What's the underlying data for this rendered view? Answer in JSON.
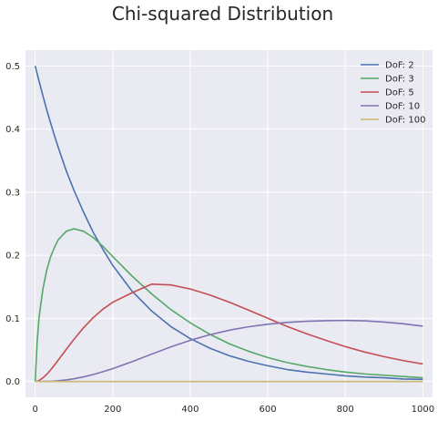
{
  "chart_data": {
    "type": "line",
    "title": "Chi-squared Distribution",
    "xlabel": "",
    "ylabel": "",
    "xlim": [
      -25,
      1025
    ],
    "ylim": [
      -0.025,
      0.525
    ],
    "xticks": [
      0,
      200,
      400,
      600,
      800,
      1000
    ],
    "xtick_labels": [
      "0",
      "200",
      "400",
      "600",
      "800",
      "1000"
    ],
    "yticks": [
      0.0,
      0.1,
      0.2,
      0.3,
      0.4,
      0.5
    ],
    "ytick_labels": [
      "0.0",
      "0.1",
      "0.2",
      "0.3",
      "0.4",
      "0.5"
    ],
    "grid": true,
    "legend_position": "top-right",
    "background": "#eaeaf2",
    "x": [
      0,
      5,
      10,
      20,
      30,
      40,
      50,
      60,
      80,
      100,
      125,
      150,
      175,
      200,
      250,
      300,
      350,
      400,
      450,
      500,
      550,
      600,
      650,
      700,
      750,
      800,
      850,
      900,
      950,
      1000
    ],
    "series": [
      {
        "name": "DoF: 2",
        "color": "#4c72b0",
        "values": [
          0.5,
          0.4878,
          0.476,
          0.4524,
          0.43,
          0.409,
          0.389,
          0.37,
          0.334,
          0.303,
          0.268,
          0.236,
          0.209,
          0.184,
          0.143,
          0.112,
          0.087,
          0.068,
          0.053,
          0.041,
          0.032,
          0.025,
          0.019,
          0.015,
          0.012,
          0.009,
          0.007,
          0.006,
          0.004,
          0.0034
        ]
      },
      {
        "name": "DoF: 3",
        "color": "#55a868",
        "values": [
          0.0,
          0.062,
          0.102,
          0.147,
          0.177,
          0.198,
          0.213,
          0.225,
          0.238,
          0.242,
          0.238,
          0.228,
          0.214,
          0.198,
          0.167,
          0.139,
          0.114,
          0.093,
          0.075,
          0.06,
          0.048,
          0.038,
          0.03,
          0.024,
          0.019,
          0.015,
          0.012,
          0.01,
          0.008,
          0.006
        ]
      },
      {
        "name": "DoF: 5",
        "color": "#c44e52",
        "values": [
          0.0,
          0.0003,
          0.0017,
          0.0057,
          0.0115,
          0.0185,
          0.0262,
          0.0343,
          0.0508,
          0.0668,
          0.0854,
          0.1014,
          0.1148,
          0.1256,
          0.1407,
          0.1542,
          0.153,
          0.1466,
          0.1372,
          0.1259,
          0.1132,
          0.1003,
          0.0872,
          0.0757,
          0.0652,
          0.0553,
          0.0467,
          0.0394,
          0.0331,
          0.0278
        ]
      },
      {
        "name": "DoF: 10",
        "color": "#8172b2",
        "values": [
          0.0,
          0.0,
          0.0,
          0.0001,
          0.0002,
          0.0004,
          0.0007,
          0.0012,
          0.0025,
          0.0043,
          0.0074,
          0.0111,
          0.0156,
          0.0204,
          0.0314,
          0.0433,
          0.0549,
          0.0653,
          0.0741,
          0.0812,
          0.0867,
          0.0908,
          0.0936,
          0.0954,
          0.0964,
          0.0968,
          0.0962,
          0.0942,
          0.0915,
          0.0877
        ]
      },
      {
        "name": "DoF: 100",
        "color": "#ccb974",
        "values": [
          0,
          0,
          0,
          0,
          0,
          0,
          0,
          0,
          0,
          0,
          0,
          0,
          0,
          0,
          0,
          0,
          0,
          0,
          0,
          0,
          0,
          0,
          0,
          0,
          0,
          0,
          0,
          0,
          0,
          0
        ]
      }
    ]
  }
}
